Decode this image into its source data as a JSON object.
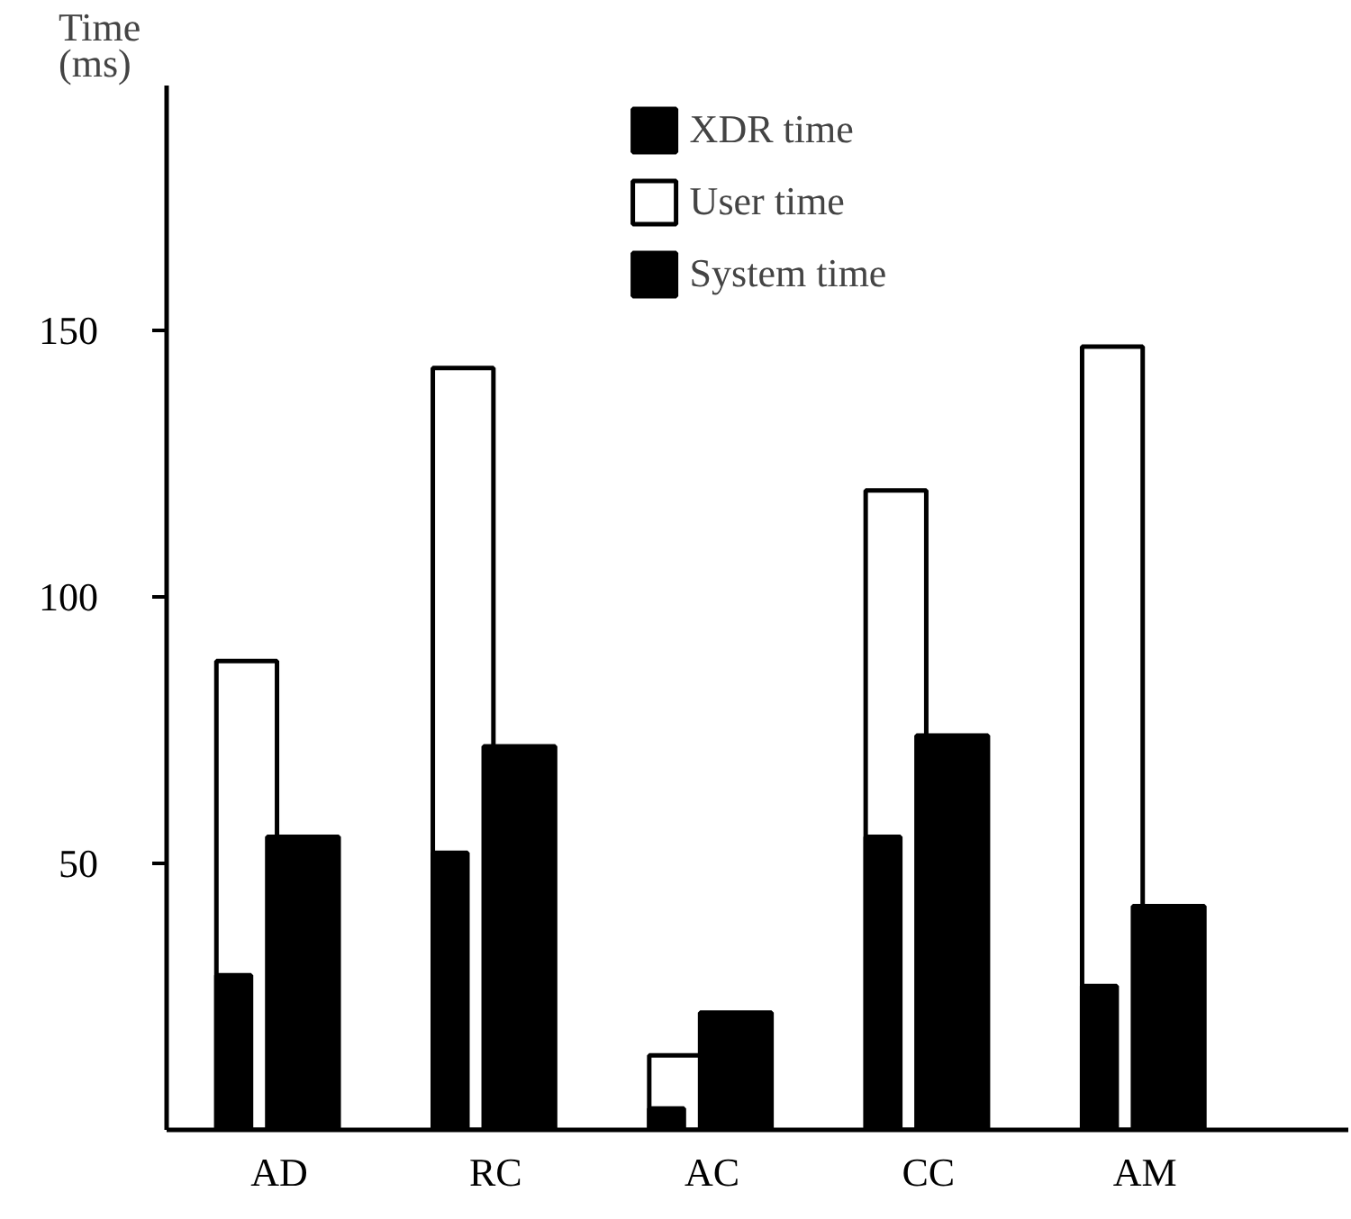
{
  "chart_data": {
    "type": "bar",
    "ylabel": "Time (ms)",
    "categories": [
      "AD",
      "RC",
      "AC",
      "CC",
      "AM"
    ],
    "series": [
      {
        "name": "User time",
        "color": "#ffffff",
        "values": [
          88,
          143,
          14,
          120,
          147
        ]
      },
      {
        "name": "XDR time",
        "color": "#000000",
        "values": [
          29,
          52,
          4,
          55,
          27
        ]
      },
      {
        "name": "System time",
        "color": "#000000",
        "values": [
          55,
          72,
          22,
          74,
          42
        ]
      }
    ],
    "ylim": [
      0,
      196
    ],
    "yticks": [
      50,
      100,
      150
    ],
    "grid": false,
    "legend": "top"
  }
}
